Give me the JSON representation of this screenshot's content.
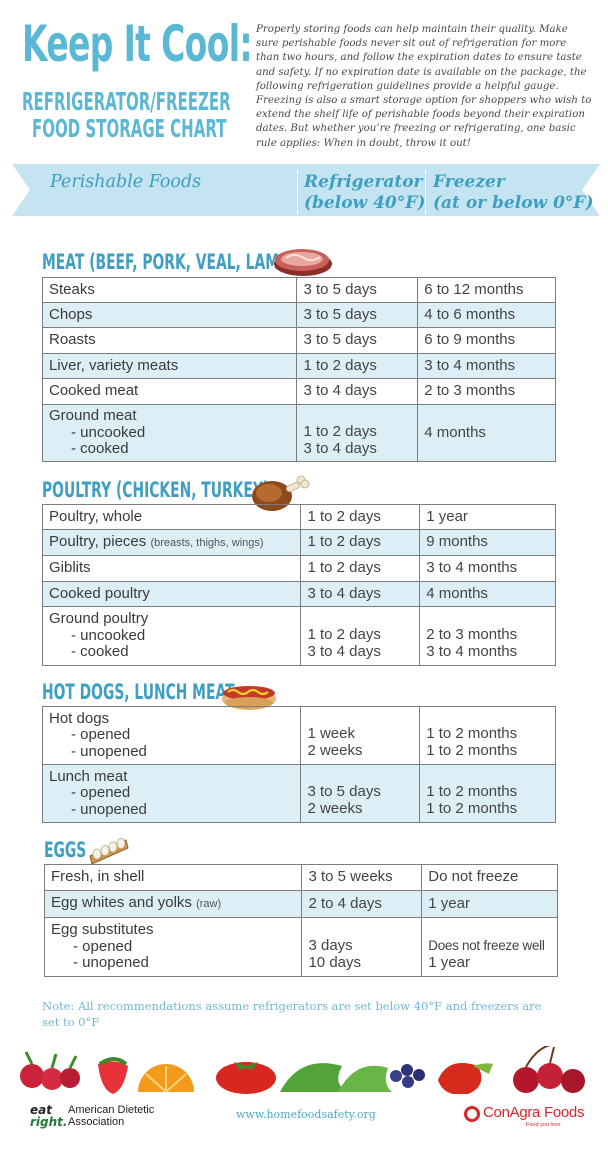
{
  "header": {
    "title": "Keep It Cool:",
    "subtitle_line1": "REFRIGERATOR/FREEZER",
    "subtitle_line2": "FOOD STORAGE CHART",
    "intro": "Properly storing foods can help maintain their quality. Make sure perishable foods never sit out of refrigeration for more than two hours, and follow the expiration dates to ensure taste and safety. If no expiration date is available on the package, the following refrigeration guidelines provide a helpful gauge. Freezing is also a smart storage option for shoppers who wish to extend the shelf life of perishable foods beyond their expiration dates. But whether you’re freezing or refrigerating, one basic rule applies: When in doubt, throw it out!"
  },
  "banner": {
    "col1": "Perishable Foods",
    "col2_line1": "Refrigerator",
    "col2_line2": "(below 40°F)",
    "col3_line1": "Freezer",
    "col3_line2": "(at or below 0°F)"
  },
  "sections": {
    "meat": {
      "title": "MEAT (BEEF, PORK, VEAL, LAMB)",
      "icon": "steak-icon",
      "rows": [
        {
          "food": "Steaks",
          "fridge": "3 to 5 days",
          "freezer": "6 to 12 months"
        },
        {
          "food": "Chops",
          "fridge": "3 to 5 days",
          "freezer": "4 to 6 months"
        },
        {
          "food": "Roasts",
          "fridge": "3 to 5 days",
          "freezer": "6 to 9 months"
        },
        {
          "food": "Liver, variety meats",
          "fridge": "1 to 2 days",
          "freezer": "3 to 4 months"
        },
        {
          "food": "Cooked meat",
          "fridge": "3 to 4 days",
          "freezer": "2 to 3 months"
        },
        {
          "food": "Ground meat",
          "sub1": "- uncooked",
          "sub2": "- cooked",
          "fridge1": "1 to 2 days",
          "fridge2": "3 to 4 days",
          "freezer1": "4 months"
        }
      ]
    },
    "poultry": {
      "title": "POULTRY (CHICKEN, TURKEY)",
      "icon": "turkey-leg-icon",
      "rows": [
        {
          "food": "Poultry, whole",
          "fridge": "1 to 2 days",
          "freezer": "1 year"
        },
        {
          "food": "Poultry, pieces",
          "note": "(breasts, thighs, wings)",
          "fridge": "1 to 2 days",
          "freezer": "9 months"
        },
        {
          "food": "Giblits",
          "fridge": "1 to 2 days",
          "freezer": "3 to 4 months"
        },
        {
          "food": "Cooked poultry",
          "fridge": "3 to 4 days",
          "freezer": "4 months"
        },
        {
          "food": "Ground poultry",
          "sub1": "- uncooked",
          "sub2": "- cooked",
          "fridge1": "1 to 2 days",
          "fridge2": "3 to 4 days",
          "freezer1": "2 to 3 months",
          "freezer2": "3 to 4 months"
        }
      ]
    },
    "hotdogs": {
      "title": "HOT DOGS, LUNCH MEAT",
      "icon": "hot-dog-icon",
      "rows": [
        {
          "food": "Hot dogs",
          "sub1": "- opened",
          "sub2": "- unopened",
          "fridge1": "1 week",
          "fridge2": "2 weeks",
          "freezer1": "1 to 2 months",
          "freezer2": "1 to 2 months"
        },
        {
          "food": "Lunch meat",
          "sub1": "- opened",
          "sub2": "- unopened",
          "fridge1": "3 to 5 days",
          "fridge2": "2 weeks",
          "freezer1": "1 to 2 months",
          "freezer2": "1 to 2 months"
        }
      ]
    },
    "eggs": {
      "title": "EGGS",
      "icon": "egg-carton-icon",
      "rows": [
        {
          "food": "Fresh, in shell",
          "fridge": "3 to 5 weeks",
          "freezer": "Do not freeze"
        },
        {
          "food": "Egg whites and yolks",
          "note": "(raw)",
          "fridge": "2 to 4 days",
          "freezer": "1 year"
        },
        {
          "food": "Egg substitutes",
          "sub1": "- opened",
          "sub2": "- unopened",
          "fridge1": "3 days",
          "fridge2": "10 days",
          "freezer1": "Does not freeze well",
          "freezer2": "1 year"
        }
      ]
    }
  },
  "footnote": "Note: All recommendations assume refrigerators are set below 40°F and freezers are set to 0°F",
  "footer": {
    "logo_left_line1": "American Dietetic",
    "logo_left_line2": "Association",
    "logo_left_mark1": "eat",
    "logo_left_mark2": "right.",
    "website": "www.homefoodsafety.org",
    "logo_right": "ConAgra Foods",
    "logo_right_tagline": "Food you love"
  },
  "colors": {
    "accent_blue": "#5bb8d4",
    "row_tint": "#ddeff6",
    "banner_fill": "#c4e4f1",
    "conagra_red": "#d9262b"
  }
}
